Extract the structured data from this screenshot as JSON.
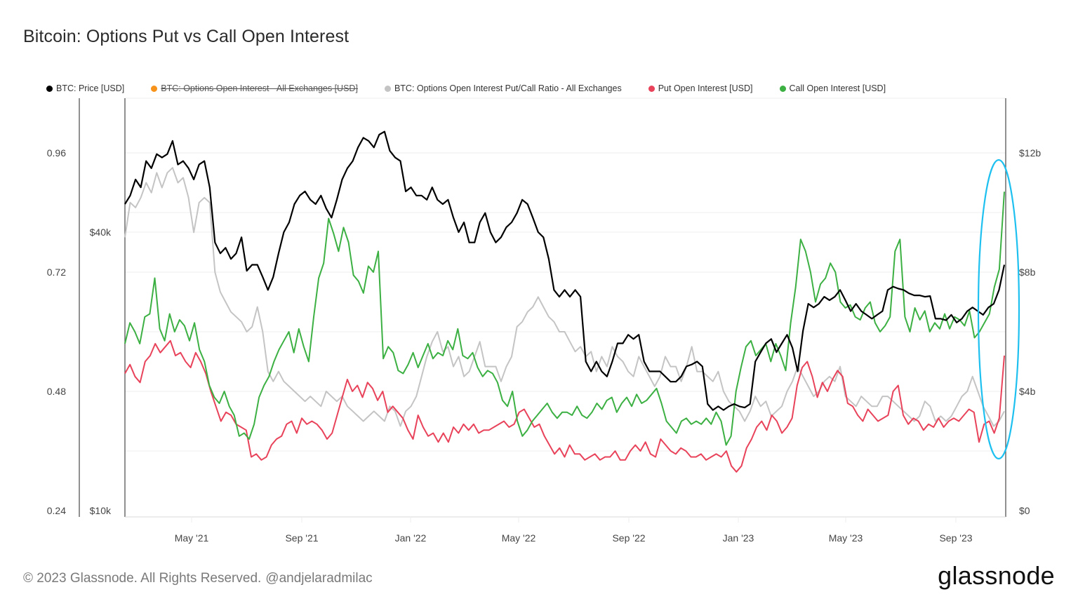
{
  "title": "Bitcoin: Options Put vs Call Open Interest",
  "legend": [
    {
      "label": "BTC: Price [USD]",
      "color": "#000000",
      "enabled": true
    },
    {
      "label": "BTC: Options Open Interest - All Exchanges [USD]",
      "color": "#f7931a",
      "enabled": false
    },
    {
      "label": "BTC: Options Open Interest Put/Call Ratio - All Exchanges",
      "color": "#c4c4c4",
      "enabled": true
    },
    {
      "label": "Put Open Interest [USD]",
      "color": "#e8435a",
      "enabled": true
    },
    {
      "label": "Call Open Interest [USD]",
      "color": "#3cb043",
      "enabled": true
    }
  ],
  "footer": {
    "copyright": "© 2023 Glassnode. All Rights Reserved.",
    "handle": "@andjelaradmilac"
  },
  "logo": "glassnode",
  "annotation": {
    "type": "ellipse",
    "color": "#1ec0f0",
    "description": "Highlight of late Oct 2023 surge"
  },
  "chart_data": {
    "type": "line",
    "title": "Bitcoin: Options Put vs Call Open Interest",
    "x_ticks": [
      "May '21",
      "Sep '21",
      "Jan '22",
      "May '22",
      "Sep '22",
      "Jan '23",
      "May '23",
      "Sep '23"
    ],
    "x_range": [
      "2021-02-08",
      "2023-10-30"
    ],
    "axes": {
      "ratio": {
        "side": "left-outer",
        "ticks": [
          "0.24",
          "0.48",
          "0.72",
          "0.96"
        ],
        "range": [
          0.24,
          1.02
        ]
      },
      "price": {
        "side": "left-inner",
        "scale": "log",
        "ticks": [
          "$10k",
          "$40k"
        ],
        "range": [
          10000,
          75000
        ]
      },
      "open_interest": {
        "side": "right",
        "ticks": [
          "$0",
          "$4b",
          "$8b",
          "$12b"
        ],
        "range": [
          0,
          13.6
        ],
        "unit": "billion USD"
      }
    },
    "grid": true,
    "legend_position": "top",
    "series": [
      {
        "name": "BTC: Price [USD]",
        "axis": "price",
        "color": "#000000",
        "values": [
          46000,
          48000,
          52000,
          50000,
          57000,
          55000,
          59000,
          58000,
          59000,
          63000,
          56000,
          57000,
          55000,
          52000,
          56000,
          57000,
          50000,
          38000,
          36000,
          37000,
          35000,
          36000,
          39000,
          33000,
          34000,
          34000,
          32000,
          30000,
          32000,
          36000,
          40000,
          42000,
          46000,
          48000,
          49000,
          47000,
          46000,
          48000,
          45000,
          43000,
          47000,
          52000,
          55000,
          57000,
          61000,
          64000,
          63000,
          61000,
          65000,
          66000,
          60000,
          58000,
          57000,
          49000,
          50000,
          48000,
          48000,
          47000,
          50000,
          47000,
          46000,
          47000,
          43000,
          40000,
          42000,
          38000,
          38000,
          42000,
          44000,
          40000,
          38000,
          39000,
          41000,
          42000,
          44000,
          47000,
          46000,
          43000,
          40000,
          39000,
          35000,
          30000,
          29000,
          30000,
          29000,
          30000,
          29000,
          21000,
          20000,
          21000,
          20000,
          19500,
          21000,
          23000,
          23000,
          24000,
          23500,
          24000,
          21000,
          20000,
          20000,
          20000,
          19500,
          19000,
          19000,
          19500,
          20500,
          20700,
          21000,
          20500,
          17000,
          16500,
          16800,
          16500,
          16800,
          17000,
          16800,
          16700,
          17000,
          21000,
          22000,
          23000,
          23500,
          22000,
          23000,
          24000,
          22500,
          20000,
          24500,
          28000,
          27500,
          28000,
          29000,
          28500,
          29000,
          30000,
          28500,
          27000,
          28000,
          27000,
          26500,
          26000,
          26500,
          27000,
          30000,
          30500,
          30200,
          30000,
          29500,
          29200,
          29200,
          29000,
          29100,
          26000,
          26000,
          25800,
          26500,
          25500,
          26000,
          27000,
          27500,
          27000,
          26500,
          27500,
          28000,
          30000,
          34000
        ]
      },
      {
        "name": "BTC: Options Open Interest Put/Call Ratio - All Exchanges",
        "axis": "ratio",
        "color": "#c4c4c4",
        "values": [
          0.79,
          0.86,
          0.85,
          0.87,
          0.9,
          0.88,
          0.92,
          0.89,
          0.92,
          0.93,
          0.9,
          0.91,
          0.87,
          0.8,
          0.86,
          0.87,
          0.86,
          0.72,
          0.68,
          0.66,
          0.64,
          0.63,
          0.62,
          0.6,
          0.61,
          0.65,
          0.6,
          0.52,
          0.5,
          0.52,
          0.5,
          0.49,
          0.48,
          0.47,
          0.46,
          0.47,
          0.46,
          0.45,
          0.48,
          0.47,
          0.46,
          0.47,
          0.45,
          0.44,
          0.43,
          0.42,
          0.43,
          0.44,
          0.43,
          0.42,
          0.45,
          0.44,
          0.41,
          0.44,
          0.45,
          0.47,
          0.51,
          0.55,
          0.58,
          0.6,
          0.56,
          0.57,
          0.53,
          0.55,
          0.51,
          0.52,
          0.55,
          0.58,
          0.53,
          0.53,
          0.53,
          0.5,
          0.53,
          0.55,
          0.61,
          0.62,
          0.64,
          0.65,
          0.67,
          0.65,
          0.63,
          0.62,
          0.6,
          0.6,
          0.58,
          0.56,
          0.57,
          0.55,
          0.56,
          0.52,
          0.55,
          0.53,
          0.57,
          0.55,
          0.54,
          0.52,
          0.51,
          0.55,
          0.53,
          0.51,
          0.49,
          0.51,
          0.55,
          0.53,
          0.53,
          0.5,
          0.53,
          0.57,
          0.52,
          0.52,
          0.51,
          0.5,
          0.52,
          0.48,
          0.46,
          0.45,
          0.44,
          0.42,
          0.44,
          0.47,
          0.45,
          0.46,
          0.43,
          0.44,
          0.45,
          0.48,
          0.5,
          0.53,
          0.51,
          0.49,
          0.47,
          0.48,
          0.5,
          0.51,
          0.5,
          0.53,
          0.47,
          0.46,
          0.45,
          0.47,
          0.46,
          0.45,
          0.45,
          0.47,
          0.47,
          0.46,
          0.45,
          0.44,
          0.43,
          0.42,
          0.43,
          0.46,
          0.45,
          0.42,
          0.43,
          0.42,
          0.43,
          0.45,
          0.47,
          0.48,
          0.51,
          0.48,
          0.45,
          0.43,
          0.41,
          0.42,
          0.44
        ]
      },
      {
        "name": "Put Open Interest [USD]",
        "axis": "open_interest",
        "color": "#e8435a",
        "values": [
          4.6,
          4.9,
          4.5,
          4.3,
          5.0,
          5.2,
          5.6,
          5.3,
          5.5,
          5.7,
          5.2,
          5.3,
          5.0,
          4.8,
          5.3,
          5.0,
          4.6,
          4.0,
          3.5,
          3.0,
          3.3,
          3.2,
          2.9,
          2.8,
          2.7,
          1.8,
          1.9,
          1.7,
          1.8,
          2.2,
          2.4,
          2.5,
          2.9,
          3.0,
          2.6,
          3.1,
          2.9,
          3.0,
          2.9,
          2.7,
          2.4,
          2.6,
          3.2,
          3.8,
          4.4,
          4.0,
          4.2,
          3.8,
          4.3,
          4.1,
          3.7,
          4.0,
          3.3,
          3.5,
          3.3,
          3.1,
          2.7,
          2.4,
          3.2,
          2.8,
          2.5,
          2.6,
          2.3,
          2.6,
          2.3,
          2.8,
          2.6,
          2.9,
          2.7,
          2.9,
          2.6,
          2.7,
          2.7,
          2.8,
          2.9,
          3.0,
          2.8,
          2.9,
          3.3,
          3.4,
          3.1,
          2.8,
          2.9,
          2.5,
          2.2,
          1.9,
          2.1,
          1.8,
          2.2,
          1.9,
          1.9,
          1.7,
          1.8,
          1.9,
          1.7,
          1.8,
          1.8,
          2.0,
          1.7,
          1.7,
          2.0,
          2.2,
          2.0,
          2.3,
          1.9,
          1.8,
          2.4,
          2.2,
          2.0,
          1.9,
          2.1,
          2.0,
          1.8,
          1.8,
          1.9,
          1.7,
          1.8,
          1.9,
          1.8,
          2.0,
          1.5,
          1.3,
          1.5,
          2.1,
          2.4,
          2.8,
          3.0,
          2.7,
          3.2,
          3.0,
          2.6,
          2.8,
          3.1,
          4.2,
          4.8,
          5.0,
          4.5,
          3.8,
          4.3,
          4.0,
          4.4,
          4.7,
          4.5,
          3.6,
          3.5,
          3.2,
          3.0,
          3.4,
          3.2,
          3.0,
          3.1,
          3.2,
          4.0,
          4.2,
          3.2,
          2.9,
          3.1,
          3.0,
          2.7,
          2.9,
          2.8,
          3.1,
          2.8,
          3.0,
          3.1,
          3.0,
          3.2,
          3.4,
          3.3,
          2.3,
          2.9,
          3.0,
          2.6,
          3.1,
          5.2
        ]
      },
      {
        "name": "Call Open Interest [USD]",
        "axis": "open_interest",
        "color": "#3cb043",
        "values": [
          5.6,
          6.3,
          6.0,
          5.6,
          6.5,
          6.6,
          7.8,
          6.1,
          5.7,
          6.6,
          6.0,
          6.4,
          6.2,
          5.7,
          6.3,
          5.4,
          5.0,
          4.2,
          3.8,
          3.6,
          4.0,
          3.5,
          3.2,
          2.5,
          2.6,
          2.4,
          2.9,
          3.8,
          4.2,
          4.5,
          5.0,
          5.4,
          5.7,
          6.0,
          5.3,
          6.1,
          5.5,
          5.0,
          6.5,
          7.8,
          8.3,
          9.8,
          9.3,
          8.7,
          9.5,
          9.0,
          7.9,
          7.7,
          7.3,
          8.2,
          8.0,
          8.7,
          5.1,
          5.5,
          5.3,
          4.7,
          4.6,
          4.9,
          5.3,
          4.8,
          5.2,
          5.6,
          5.1,
          5.3,
          5.2,
          5.7,
          5.4,
          6.1,
          5.2,
          5.1,
          5.3,
          4.8,
          4.5,
          4.7,
          4.6,
          4.3,
          3.7,
          3.5,
          4.0,
          3.0,
          2.5,
          2.7,
          3.0,
          3.2,
          3.4,
          3.6,
          3.3,
          3.1,
          3.3,
          3.3,
          3.2,
          3.5,
          3.2,
          3.1,
          3.3,
          3.6,
          3.4,
          3.7,
          3.8,
          3.3,
          3.6,
          3.8,
          3.5,
          3.9,
          3.6,
          3.7,
          3.9,
          4.1,
          3.6,
          3.0,
          2.8,
          2.6,
          3.0,
          3.1,
          2.9,
          3.0,
          2.9,
          3.1,
          2.9,
          3.3,
          3.0,
          2.2,
          2.5,
          4.0,
          4.8,
          5.5,
          5.7,
          5.2,
          5.4,
          5.6,
          5.0,
          5.6,
          5.2,
          4.7,
          6.3,
          7.5,
          9.1,
          8.7,
          8.0,
          7.0,
          7.6,
          7.8,
          8.3,
          8.0,
          7.0,
          6.8,
          6.9,
          6.5,
          6.4,
          6.8,
          7.0,
          6.3,
          6.0,
          6.2,
          6.5,
          8.7,
          9.1,
          6.5,
          6.0,
          6.8,
          6.4,
          6.7,
          6.0,
          6.3,
          6.1,
          6.6,
          6.1,
          6.5,
          6.4,
          6.2,
          6.7,
          5.8,
          6.0,
          6.3,
          6.6,
          7.5,
          8.1,
          10.7
        ]
      }
    ]
  }
}
